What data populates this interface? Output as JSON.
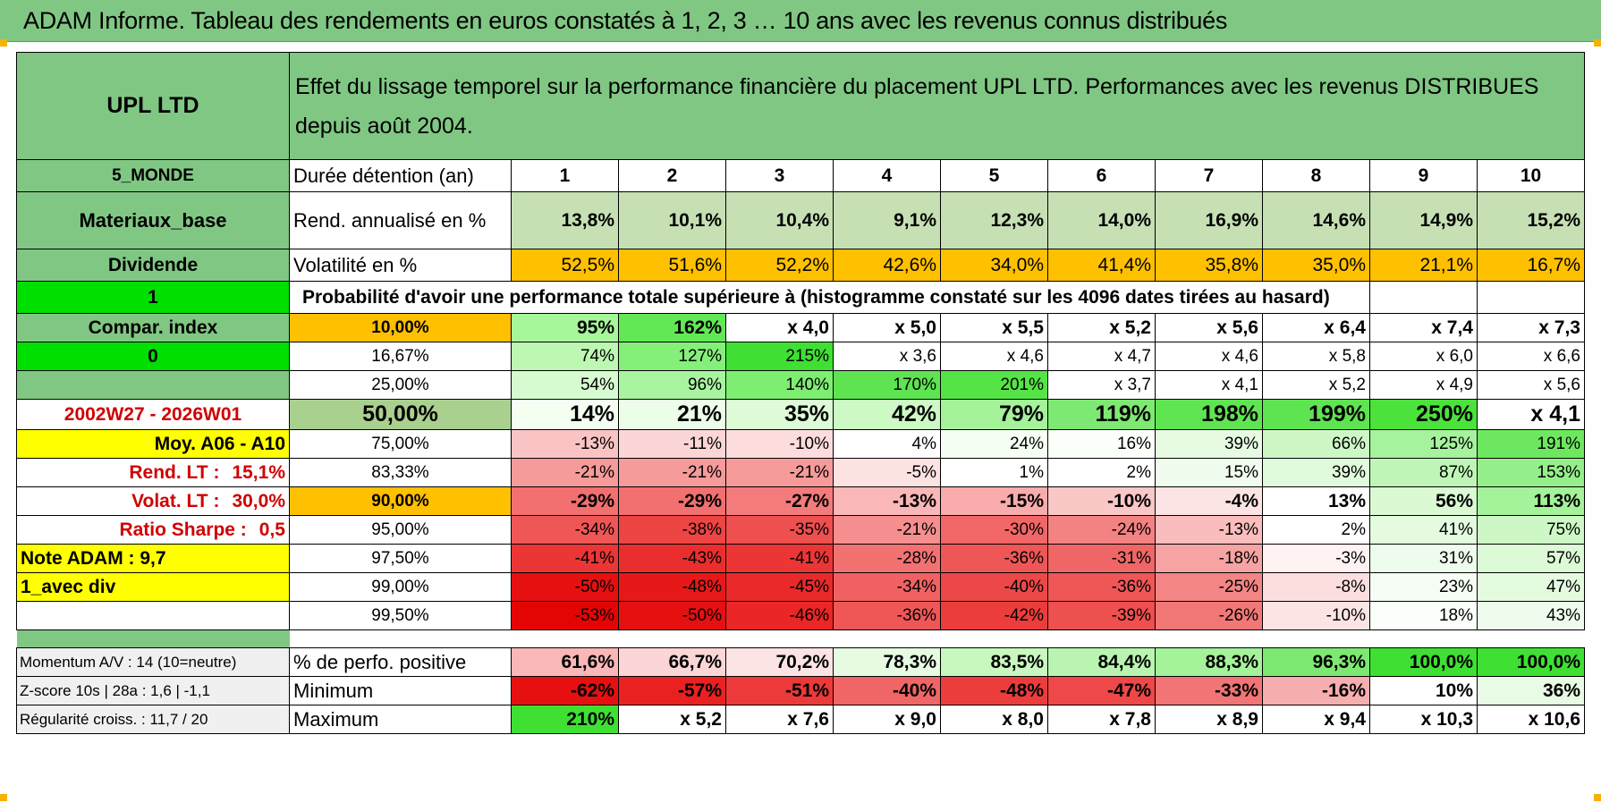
{
  "title": "ADAM Informe. Tableau des rendements en euros constatés à 1, 2, 3 … 10 ans avec les revenus connus distribués",
  "fund_name": "UPL LTD",
  "description": "Effet du lissage temporel sur la performance financière du placement UPL LTD. Performances avec les revenus DISTRIBUES depuis août 2004.",
  "left": {
    "zone": "5_MONDE",
    "sector": "Materiaux_base",
    "dividend": "Dividende",
    "flag1": "1",
    "compar": "Compar. index",
    "flag0": "0",
    "period": "2002W27 - 2026W01",
    "moy": "Moy. A06 - A10",
    "rend_label": "Rend. LT :",
    "rend_value": "15,1%",
    "volat_label": "Volat. LT :",
    "volat_value": "30,0%",
    "sharpe_label": "Ratio Sharpe :",
    "sharpe_value": "0,5",
    "note": "Note ADAM : 9,7",
    "avec_div": "1_avec div",
    "momentum": "Momentum A/V : 14 (10=neutre)",
    "zscore": "Z-score 10s | 28a : 1,6 | -1,1",
    "regularite": "Régularité croiss. : 11,7 / 20"
  },
  "header": {
    "duration_label": "Durée détention (an)",
    "years": [
      "1",
      "2",
      "3",
      "4",
      "5",
      "6",
      "7",
      "8",
      "9",
      "10"
    ]
  },
  "rend": {
    "label": "Rend. annualisé en %",
    "values": [
      "13,8%",
      "10,1%",
      "10,4%",
      "9,1%",
      "12,3%",
      "14,0%",
      "16,9%",
      "14,6%",
      "14,9%",
      "15,2%"
    ]
  },
  "vol": {
    "label": "Volatilité en %",
    "values": [
      "52,5%",
      "51,6%",
      "52,2%",
      "42,6%",
      "34,0%",
      "41,4%",
      "35,8%",
      "35,0%",
      "21,1%",
      "16,7%"
    ]
  },
  "proba_label": "Probabilité d'avoir une performance totale supérieure à (histogramme constaté sur les 4096 dates tirées au hasard)",
  "pct_rows": [
    {
      "pct": "10,00%",
      "values": [
        "95%",
        "162%",
        "x 4,0",
        "x 5,0",
        "x 5,5",
        "x 5,2",
        "x 5,6",
        "x 6,4",
        "x 7,4",
        "x 7,3"
      ]
    },
    {
      "pct": "16,67%",
      "values": [
        "74%",
        "127%",
        "215%",
        "x 3,6",
        "x 4,6",
        "x 4,7",
        "x 4,6",
        "x 5,8",
        "x 6,0",
        "x 6,6"
      ]
    },
    {
      "pct": "25,00%",
      "values": [
        "54%",
        "96%",
        "140%",
        "170%",
        "201%",
        "x 3,7",
        "x 4,1",
        "x 5,2",
        "x 4,9",
        "x 5,6"
      ]
    },
    {
      "pct": "50,00%",
      "values": [
        "14%",
        "21%",
        "35%",
        "42%",
        "79%",
        "119%",
        "198%",
        "199%",
        "250%",
        "x 4,1"
      ]
    },
    {
      "pct": "75,00%",
      "values": [
        "-13%",
        "-11%",
        "-10%",
        "4%",
        "24%",
        "16%",
        "39%",
        "66%",
        "125%",
        "191%"
      ]
    },
    {
      "pct": "83,33%",
      "values": [
        "-21%",
        "-21%",
        "-21%",
        "-5%",
        "1%",
        "2%",
        "15%",
        "39%",
        "87%",
        "153%"
      ]
    },
    {
      "pct": "90,00%",
      "values": [
        "-29%",
        "-29%",
        "-27%",
        "-13%",
        "-15%",
        "-10%",
        "-4%",
        "13%",
        "56%",
        "113%"
      ]
    },
    {
      "pct": "95,00%",
      "values": [
        "-34%",
        "-38%",
        "-35%",
        "-21%",
        "-30%",
        "-24%",
        "-13%",
        "2%",
        "41%",
        "75%"
      ]
    },
    {
      "pct": "97,50%",
      "values": [
        "-41%",
        "-43%",
        "-41%",
        "-28%",
        "-36%",
        "-31%",
        "-18%",
        "-3%",
        "31%",
        "57%"
      ]
    },
    {
      "pct": "99,00%",
      "values": [
        "-50%",
        "-48%",
        "-45%",
        "-34%",
        "-40%",
        "-36%",
        "-25%",
        "-8%",
        "23%",
        "47%"
      ]
    },
    {
      "pct": "99,50%",
      "values": [
        "-53%",
        "-50%",
        "-46%",
        "-36%",
        "-42%",
        "-39%",
        "-26%",
        "-10%",
        "18%",
        "43%"
      ]
    }
  ],
  "stats": [
    {
      "label": "% de perfo. positive",
      "values": [
        "61,6%",
        "66,7%",
        "70,2%",
        "78,3%",
        "83,5%",
        "84,4%",
        "88,3%",
        "96,3%",
        "100,0%",
        "100,0%"
      ]
    },
    {
      "label": "Minimum",
      "values": [
        "-62%",
        "-57%",
        "-51%",
        "-40%",
        "-48%",
        "-47%",
        "-33%",
        "-16%",
        "10%",
        "36%"
      ]
    },
    {
      "label": "Maximum",
      "values": [
        "210%",
        "x 5,2",
        "x 7,6",
        "x 9,0",
        "x 8,0",
        "x 7,8",
        "x 8,9",
        "x 9,4",
        "x 10,3",
        "x 10,6"
      ]
    }
  ],
  "colors": {
    "header_green": "#81c784",
    "yellow": "#ffff00",
    "orange": "#ffc000",
    "bright_green": "#00e000",
    "red_text": "#d00000",
    "light_green": "#c6e0b4"
  }
}
